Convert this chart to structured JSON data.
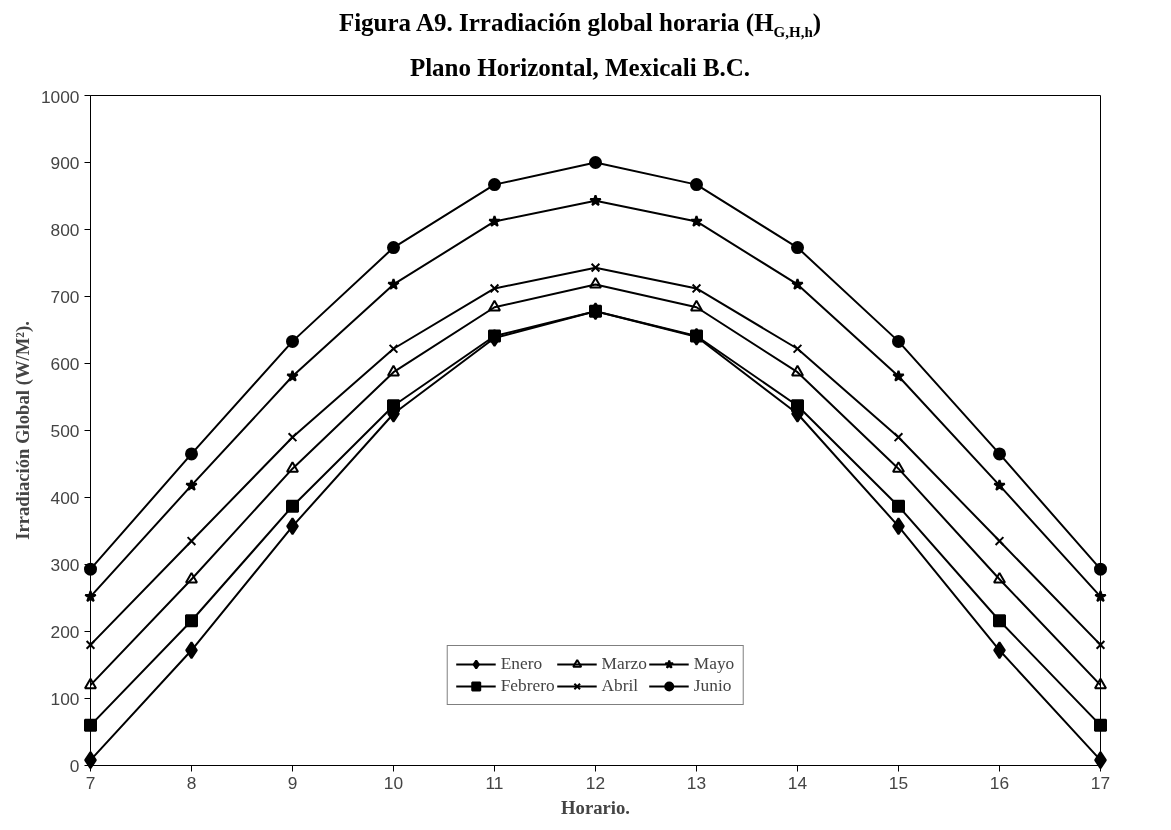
{
  "chart_data": {
    "type": "line",
    "title": "Figura A9. Irradiación global horaria (H$_{G,H,h}$)",
    "subtitle": "Plano Horizontal,  Mexicali B.C.",
    "xlabel": "Horario.",
    "ylabel": "Irradiación Global (W/M²).",
    "x": [
      7,
      8,
      9,
      10,
      11,
      12,
      13,
      14,
      15,
      16,
      17
    ],
    "xlim": [
      7,
      17
    ],
    "xticks": [
      7,
      8,
      9,
      10,
      11,
      12,
      13,
      14,
      15,
      16,
      17
    ],
    "ylim": [
      0,
      1000
    ],
    "yticks": [
      0,
      100,
      200,
      300,
      400,
      500,
      600,
      700,
      800,
      900,
      1000
    ],
    "grid": false,
    "legend": "bottom",
    "line_style": "solid",
    "series": [
      {
        "name": "Enero",
        "color": "#000000",
        "marker": "diamond",
        "values": [
          8,
          172,
          357,
          525,
          638,
          678,
          640,
          525,
          357,
          172,
          8
        ]
      },
      {
        "name": "Febrero",
        "color": "#000000",
        "marker": "square",
        "values": [
          60,
          216,
          387,
          537,
          641,
          678,
          641,
          537,
          387,
          216,
          60
        ]
      },
      {
        "name": "Marzo",
        "color": "#000000",
        "marker": "triangle",
        "values": [
          120,
          278,
          443,
          587,
          684,
          718,
          684,
          587,
          443,
          278,
          120
        ]
      },
      {
        "name": "Abril",
        "color": "#000000",
        "marker": "cross",
        "values": [
          180,
          335,
          490,
          622,
          712,
          743,
          712,
          622,
          490,
          335,
          180
        ]
      },
      {
        "name": "Mayo",
        "color": "#000000",
        "marker": "star",
        "values": [
          252,
          418,
          581,
          718,
          812,
          843,
          812,
          718,
          581,
          418,
          252
        ]
      },
      {
        "name": "Junio",
        "color": "#000000",
        "marker": "circle",
        "values": [
          293,
          465,
          633,
          773,
          867,
          900,
          867,
          773,
          633,
          465,
          293
        ]
      }
    ]
  }
}
